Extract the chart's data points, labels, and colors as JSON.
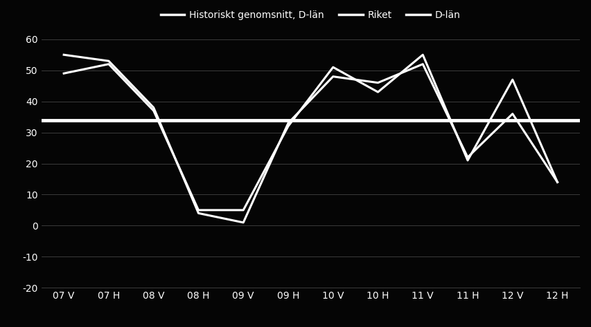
{
  "x_labels": [
    "07 V",
    "07 H",
    "08 V",
    "08 H",
    "09 V",
    "09 H",
    "10 V",
    "10 H",
    "11 V",
    "11 H",
    "12 V",
    "12 H"
  ],
  "d_lan": [
    55,
    53,
    38,
    4,
    1,
    33,
    48,
    46,
    52,
    22,
    36,
    14
  ],
  "riket": [
    49,
    52,
    37,
    5,
    5,
    32,
    51,
    43,
    55,
    21,
    47,
    14
  ],
  "historiskt_genomsnitt": 34,
  "legend_labels": [
    "D-län",
    "Historiskt genomsnitt, D-län",
    "Riket"
  ],
  "line_color": "#ffffff",
  "bg_color": "#050505",
  "grid_color": "#444444",
  "text_color": "#ffffff",
  "ylim": [
    -20,
    60
  ],
  "yticks": [
    -20,
    -10,
    0,
    10,
    20,
    30,
    40,
    50,
    60
  ],
  "tick_fontsize": 10,
  "legend_fontsize": 10,
  "linewidth_main": 2.2,
  "linewidth_hist": 3.5
}
